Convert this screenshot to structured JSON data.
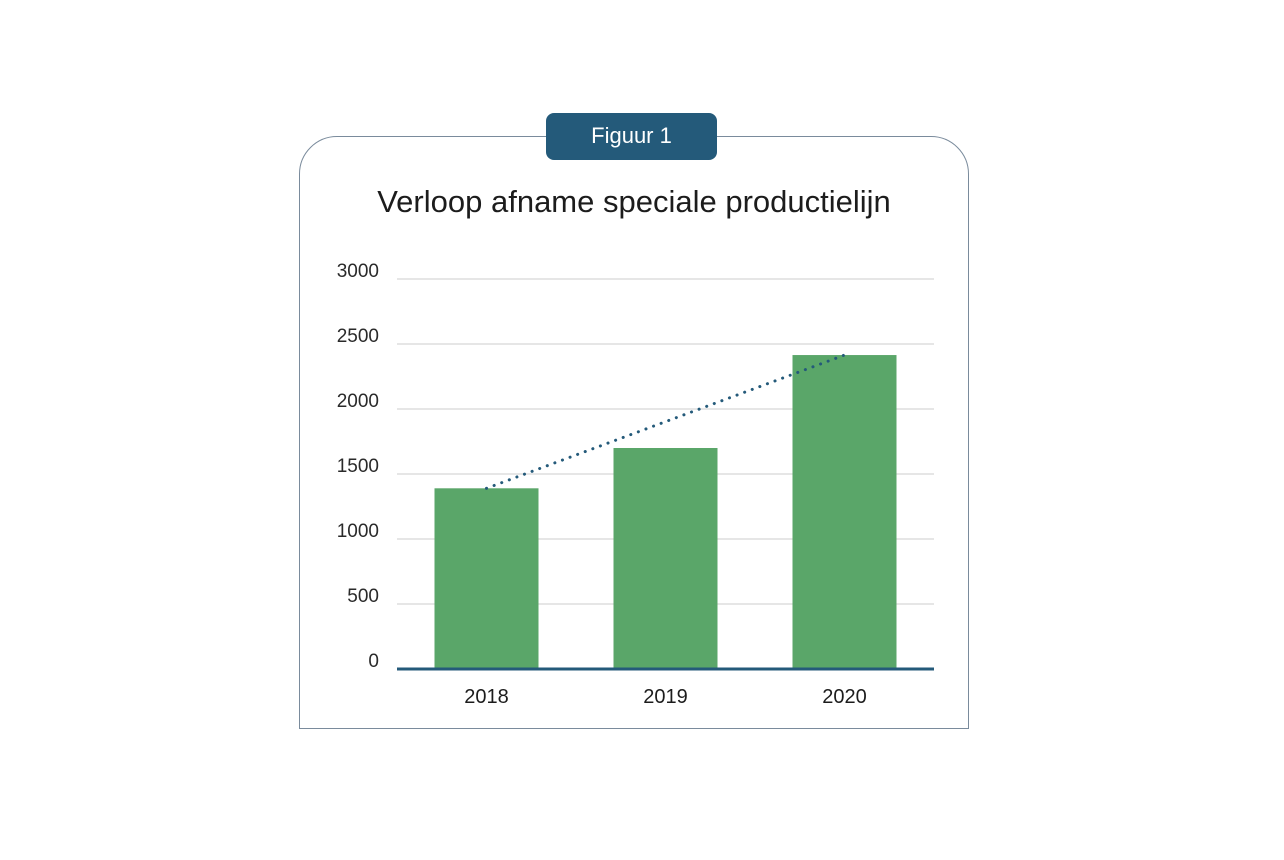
{
  "figure_label": "Figuur 1",
  "colors": {
    "bar": "#5aa669",
    "trend": "#245a7a",
    "badge": "#245a7a",
    "grid": "#cccccc",
    "axis": "#245a7a"
  },
  "chart_data": {
    "type": "bar",
    "title": "Verloop afname speciale productielijn",
    "categories": [
      "2018",
      "2019",
      "2020"
    ],
    "values": [
      1390,
      1700,
      2415
    ],
    "ylim": [
      0,
      3000
    ],
    "yticks": [
      "0",
      "500",
      "1000",
      "1500",
      "2000",
      "2500",
      "3000"
    ],
    "ytick_values": [
      0,
      500,
      1000,
      1500,
      2000,
      2500,
      3000
    ],
    "grid": true,
    "trendline": {
      "style": "dotted",
      "from": 1390,
      "to": 2415
    }
  }
}
